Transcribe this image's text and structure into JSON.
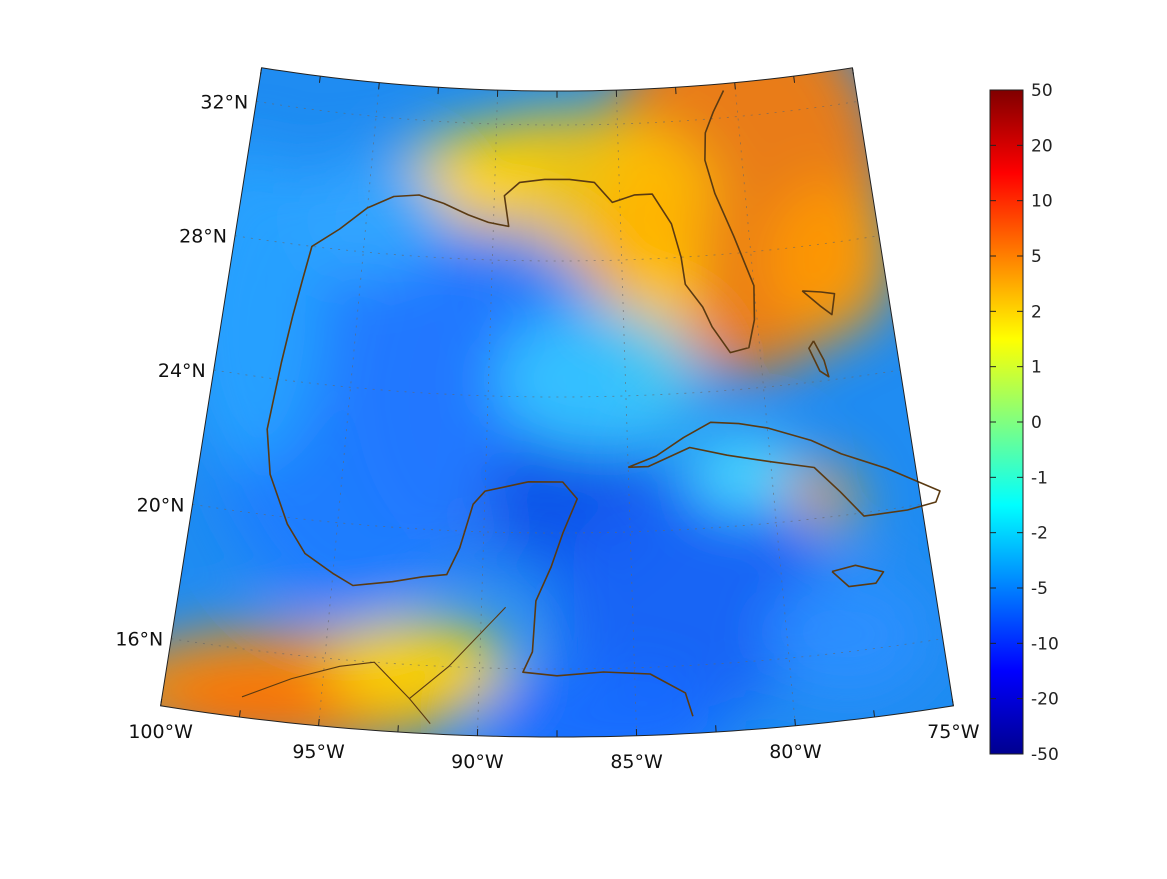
{
  "map": {
    "lat_labels": [
      {
        "lat": 32,
        "text": "32°N"
      },
      {
        "lat": 28,
        "text": "28°N"
      },
      {
        "lat": 24,
        "text": "24°N"
      },
      {
        "lat": 20,
        "text": "20°N"
      },
      {
        "lat": 16,
        "text": "16°N"
      }
    ],
    "lon_labels": [
      {
        "lon": -100,
        "text": "100°W"
      },
      {
        "lon": -95,
        "text": "95°W"
      },
      {
        "lon": -90,
        "text": "90°W"
      },
      {
        "lon": -85,
        "text": "85°W"
      },
      {
        "lon": -80,
        "text": "80°W"
      },
      {
        "lon": -75,
        "text": "75°W"
      }
    ],
    "extent": {
      "lon_min": -100,
      "lon_max": -75,
      "lat_min": 14,
      "lat_max": 33
    },
    "coast_color": "#5a3a12",
    "colormap": "jet"
  },
  "colorbar": {
    "ticks": [
      "50",
      "20",
      "10",
      "5",
      "2",
      "1",
      "0",
      "-1",
      "-2",
      "-5",
      "-10",
      "-20",
      "-50"
    ],
    "top_color": "#800000",
    "bottom_color": "#00008f"
  }
}
